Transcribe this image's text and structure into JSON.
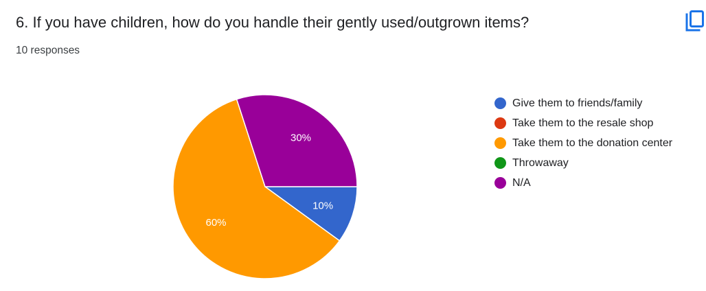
{
  "question": {
    "title": "6. If you have children, how do you handle their gently used/outgrown items?",
    "responses": "10 responses"
  },
  "icons": {
    "copy": "copy-icon"
  },
  "colors": {
    "accent": "#1a73e8"
  },
  "chart_data": {
    "type": "pie",
    "categories": [
      "Give them to friends/family",
      "Take them to the resale shop",
      "Take them to the donation center",
      "Throwaway",
      "N/A"
    ],
    "values": [
      10,
      0,
      60,
      0,
      30
    ],
    "labels": [
      "10%",
      "",
      "60%",
      "",
      "30%"
    ],
    "colors": [
      "#3366cc",
      "#dc3912",
      "#ff9900",
      "#109618",
      "#990099"
    ],
    "legend_position": "right"
  }
}
